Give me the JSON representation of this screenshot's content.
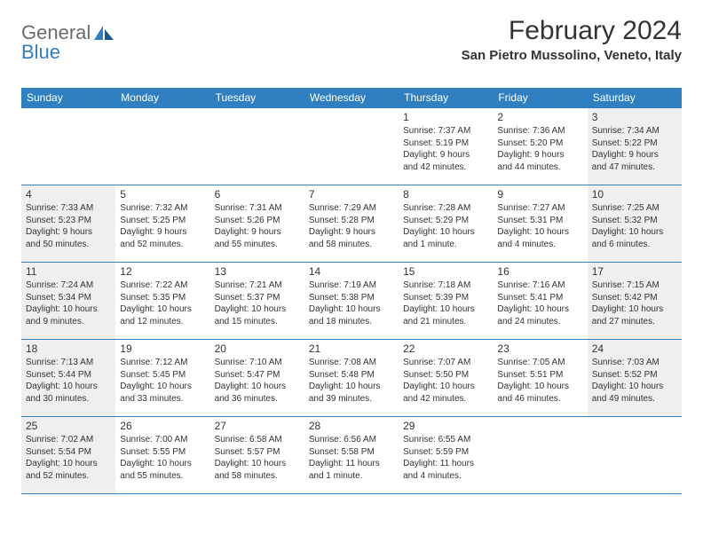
{
  "logo": {
    "part1": "General",
    "part2": "Blue"
  },
  "title": "February 2024",
  "location": "San Pietro Mussolino, Veneto, Italy",
  "colors": {
    "header_bg": "#2f7fc1",
    "shaded_bg": "#efefef",
    "text": "#333333",
    "logo_gray": "#6b6b6b",
    "logo_blue": "#2f7fc1"
  },
  "days_of_week": [
    "Sunday",
    "Monday",
    "Tuesday",
    "Wednesday",
    "Thursday",
    "Friday",
    "Saturday"
  ],
  "weeks": [
    [
      {
        "blank": true
      },
      {
        "blank": true
      },
      {
        "blank": true
      },
      {
        "blank": true
      },
      {
        "n": "1",
        "sr": "Sunrise: 7:37 AM",
        "ss": "Sunset: 5:19 PM",
        "dl1": "Daylight: 9 hours",
        "dl2": "and 42 minutes."
      },
      {
        "n": "2",
        "sr": "Sunrise: 7:36 AM",
        "ss": "Sunset: 5:20 PM",
        "dl1": "Daylight: 9 hours",
        "dl2": "and 44 minutes."
      },
      {
        "n": "3",
        "sr": "Sunrise: 7:34 AM",
        "ss": "Sunset: 5:22 PM",
        "dl1": "Daylight: 9 hours",
        "dl2": "and 47 minutes.",
        "shaded": true
      }
    ],
    [
      {
        "n": "4",
        "sr": "Sunrise: 7:33 AM",
        "ss": "Sunset: 5:23 PM",
        "dl1": "Daylight: 9 hours",
        "dl2": "and 50 minutes.",
        "shaded": true
      },
      {
        "n": "5",
        "sr": "Sunrise: 7:32 AM",
        "ss": "Sunset: 5:25 PM",
        "dl1": "Daylight: 9 hours",
        "dl2": "and 52 minutes."
      },
      {
        "n": "6",
        "sr": "Sunrise: 7:31 AM",
        "ss": "Sunset: 5:26 PM",
        "dl1": "Daylight: 9 hours",
        "dl2": "and 55 minutes."
      },
      {
        "n": "7",
        "sr": "Sunrise: 7:29 AM",
        "ss": "Sunset: 5:28 PM",
        "dl1": "Daylight: 9 hours",
        "dl2": "and 58 minutes."
      },
      {
        "n": "8",
        "sr": "Sunrise: 7:28 AM",
        "ss": "Sunset: 5:29 PM",
        "dl1": "Daylight: 10 hours",
        "dl2": "and 1 minute."
      },
      {
        "n": "9",
        "sr": "Sunrise: 7:27 AM",
        "ss": "Sunset: 5:31 PM",
        "dl1": "Daylight: 10 hours",
        "dl2": "and 4 minutes."
      },
      {
        "n": "10",
        "sr": "Sunrise: 7:25 AM",
        "ss": "Sunset: 5:32 PM",
        "dl1": "Daylight: 10 hours",
        "dl2": "and 6 minutes.",
        "shaded": true
      }
    ],
    [
      {
        "n": "11",
        "sr": "Sunrise: 7:24 AM",
        "ss": "Sunset: 5:34 PM",
        "dl1": "Daylight: 10 hours",
        "dl2": "and 9 minutes.",
        "shaded": true
      },
      {
        "n": "12",
        "sr": "Sunrise: 7:22 AM",
        "ss": "Sunset: 5:35 PM",
        "dl1": "Daylight: 10 hours",
        "dl2": "and 12 minutes."
      },
      {
        "n": "13",
        "sr": "Sunrise: 7:21 AM",
        "ss": "Sunset: 5:37 PM",
        "dl1": "Daylight: 10 hours",
        "dl2": "and 15 minutes."
      },
      {
        "n": "14",
        "sr": "Sunrise: 7:19 AM",
        "ss": "Sunset: 5:38 PM",
        "dl1": "Daylight: 10 hours",
        "dl2": "and 18 minutes."
      },
      {
        "n": "15",
        "sr": "Sunrise: 7:18 AM",
        "ss": "Sunset: 5:39 PM",
        "dl1": "Daylight: 10 hours",
        "dl2": "and 21 minutes."
      },
      {
        "n": "16",
        "sr": "Sunrise: 7:16 AM",
        "ss": "Sunset: 5:41 PM",
        "dl1": "Daylight: 10 hours",
        "dl2": "and 24 minutes."
      },
      {
        "n": "17",
        "sr": "Sunrise: 7:15 AM",
        "ss": "Sunset: 5:42 PM",
        "dl1": "Daylight: 10 hours",
        "dl2": "and 27 minutes.",
        "shaded": true
      }
    ],
    [
      {
        "n": "18",
        "sr": "Sunrise: 7:13 AM",
        "ss": "Sunset: 5:44 PM",
        "dl1": "Daylight: 10 hours",
        "dl2": "and 30 minutes.",
        "shaded": true
      },
      {
        "n": "19",
        "sr": "Sunrise: 7:12 AM",
        "ss": "Sunset: 5:45 PM",
        "dl1": "Daylight: 10 hours",
        "dl2": "and 33 minutes."
      },
      {
        "n": "20",
        "sr": "Sunrise: 7:10 AM",
        "ss": "Sunset: 5:47 PM",
        "dl1": "Daylight: 10 hours",
        "dl2": "and 36 minutes."
      },
      {
        "n": "21",
        "sr": "Sunrise: 7:08 AM",
        "ss": "Sunset: 5:48 PM",
        "dl1": "Daylight: 10 hours",
        "dl2": "and 39 minutes."
      },
      {
        "n": "22",
        "sr": "Sunrise: 7:07 AM",
        "ss": "Sunset: 5:50 PM",
        "dl1": "Daylight: 10 hours",
        "dl2": "and 42 minutes."
      },
      {
        "n": "23",
        "sr": "Sunrise: 7:05 AM",
        "ss": "Sunset: 5:51 PM",
        "dl1": "Daylight: 10 hours",
        "dl2": "and 46 minutes."
      },
      {
        "n": "24",
        "sr": "Sunrise: 7:03 AM",
        "ss": "Sunset: 5:52 PM",
        "dl1": "Daylight: 10 hours",
        "dl2": "and 49 minutes.",
        "shaded": true
      }
    ],
    [
      {
        "n": "25",
        "sr": "Sunrise: 7:02 AM",
        "ss": "Sunset: 5:54 PM",
        "dl1": "Daylight: 10 hours",
        "dl2": "and 52 minutes.",
        "shaded": true
      },
      {
        "n": "26",
        "sr": "Sunrise: 7:00 AM",
        "ss": "Sunset: 5:55 PM",
        "dl1": "Daylight: 10 hours",
        "dl2": "and 55 minutes."
      },
      {
        "n": "27",
        "sr": "Sunrise: 6:58 AM",
        "ss": "Sunset: 5:57 PM",
        "dl1": "Daylight: 10 hours",
        "dl2": "and 58 minutes."
      },
      {
        "n": "28",
        "sr": "Sunrise: 6:56 AM",
        "ss": "Sunset: 5:58 PM",
        "dl1": "Daylight: 11 hours",
        "dl2": "and 1 minute."
      },
      {
        "n": "29",
        "sr": "Sunrise: 6:55 AM",
        "ss": "Sunset: 5:59 PM",
        "dl1": "Daylight: 11 hours",
        "dl2": "and 4 minutes."
      },
      {
        "blank": true
      },
      {
        "blank": true
      }
    ]
  ]
}
